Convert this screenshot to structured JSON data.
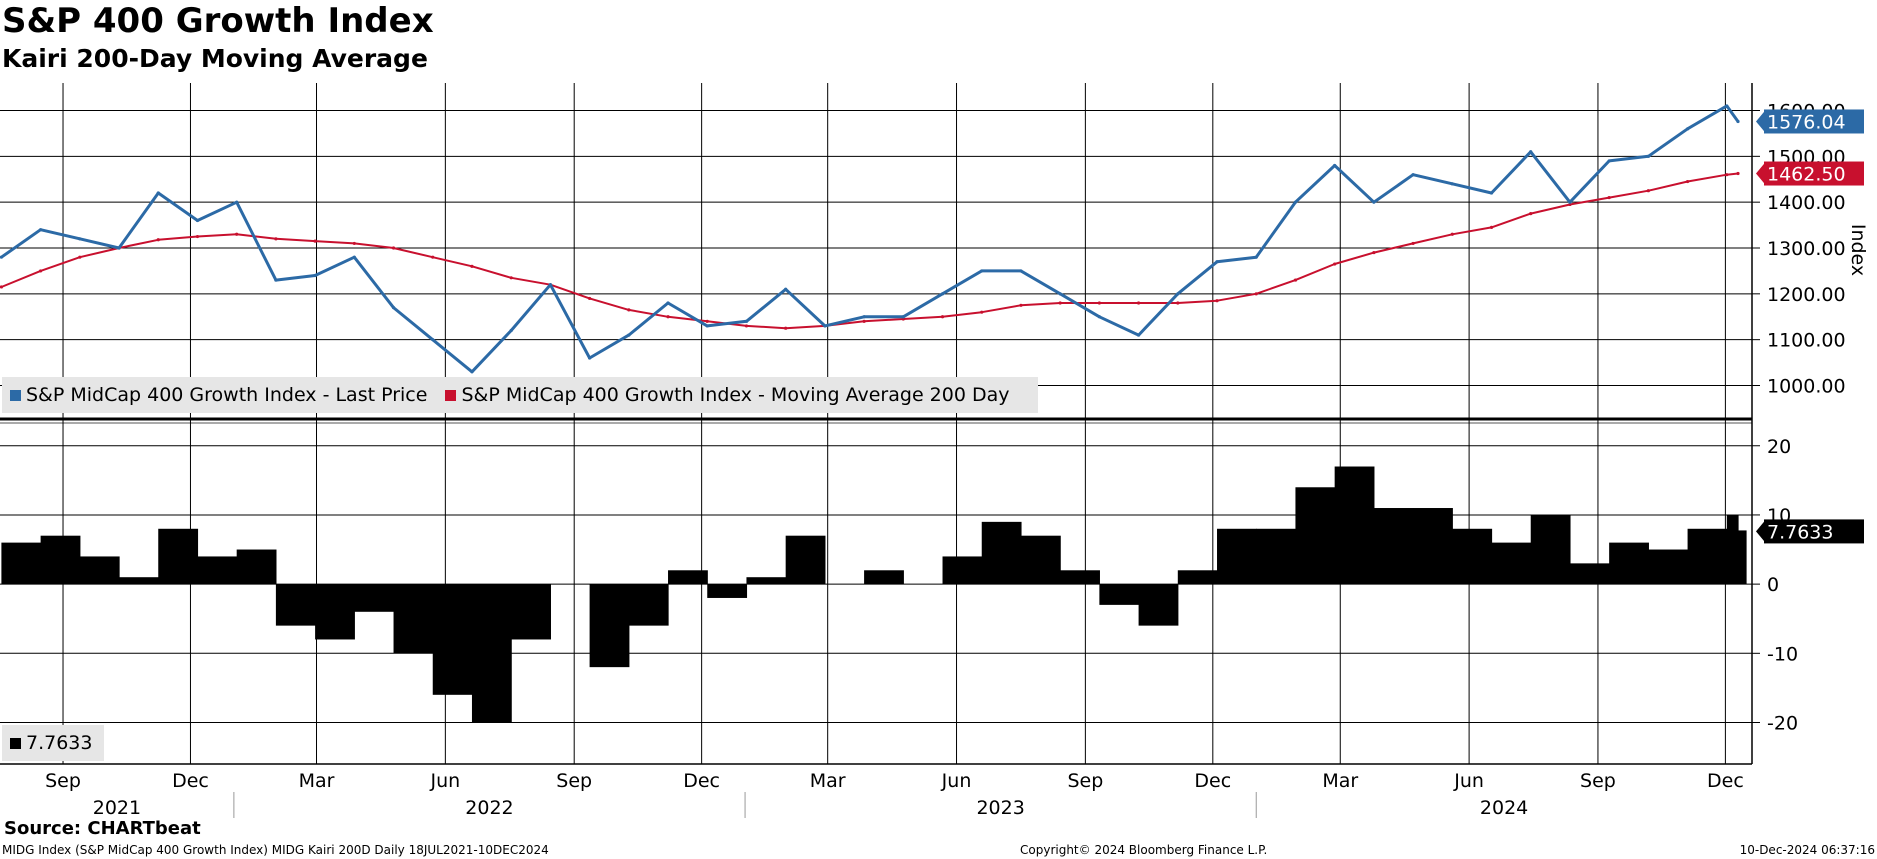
{
  "header": {
    "title": "S&P 400 Growth Index",
    "subtitle": "Kairi 200-Day Moving Average"
  },
  "colors": {
    "price": "#2c6aa6",
    "moving_average": "#c8102e",
    "kairi": "#000000",
    "legend_bg": "#e6e6e6",
    "grid": "#000000"
  },
  "legend": {
    "price_label": "S&P MidCap 400 Growth Index - Last Price",
    "ma_label": "S&P MidCap 400 Growth Index - Moving Average 200 Day",
    "kairi_label": "7.7633"
  },
  "footer": {
    "source": "Source: CHARTbeat",
    "description": "MIDG Index (S&P MidCap 400 Growth Index) MIDG Kairi 200D  Daily 18JUL2021-10DEC2024",
    "copyright": "Copyright© 2024 Bloomberg Finance L.P.",
    "timestamp": "10-Dec-2024 06:37:16"
  },
  "chart_data": [
    {
      "type": "line",
      "ylabel": "Index",
      "ylim": [
        940,
        1660
      ],
      "yticks": [
        "1600.00",
        "1500.00",
        "1400.00",
        "1300.00",
        "1200.00",
        "1100.00",
        "1000.00"
      ],
      "ytick_values": [
        1600,
        1500,
        1400,
        1300,
        1200,
        1100,
        1000
      ],
      "grid": true,
      "legend_position": "bottom-left",
      "last_values": {
        "price": "1576.04",
        "moving_average": "1462.50"
      },
      "x": [
        "2021-07-19",
        "2021-08-16",
        "2021-09-13",
        "2021-10-11",
        "2021-11-08",
        "2021-12-06",
        "2022-01-03",
        "2022-01-31",
        "2022-02-28",
        "2022-03-28",
        "2022-04-25",
        "2022-05-23",
        "2022-06-20",
        "2022-07-18",
        "2022-08-15",
        "2022-09-12",
        "2022-10-10",
        "2022-11-07",
        "2022-12-05",
        "2023-01-02",
        "2023-01-30",
        "2023-02-27",
        "2023-03-27",
        "2023-04-24",
        "2023-05-22",
        "2023-06-19",
        "2023-07-17",
        "2023-08-14",
        "2023-09-11",
        "2023-10-09",
        "2023-11-06",
        "2023-12-04",
        "2024-01-01",
        "2024-01-29",
        "2024-02-26",
        "2024-03-25",
        "2024-04-22",
        "2024-05-20",
        "2024-06-17",
        "2024-07-15",
        "2024-08-12",
        "2024-09-09",
        "2024-10-07",
        "2024-11-04",
        "2024-12-02",
        "2024-12-10"
      ],
      "series": [
        {
          "name": "S&P MidCap 400 Growth Index - Last Price",
          "values": [
            1280,
            1340,
            1320,
            1300,
            1420,
            1360,
            1400,
            1230,
            1240,
            1280,
            1170,
            1100,
            1030,
            1120,
            1220,
            1060,
            1110,
            1180,
            1130,
            1140,
            1210,
            1130,
            1150,
            1150,
            1200,
            1250,
            1250,
            1200,
            1150,
            1110,
            1200,
            1270,
            1280,
            1400,
            1480,
            1400,
            1460,
            1440,
            1420,
            1510,
            1400,
            1490,
            1500,
            1560,
            1610,
            1576.04
          ]
        },
        {
          "name": "S&P MidCap 400 Growth Index - Moving Average 200 Day",
          "values": [
            1215,
            1250,
            1280,
            1300,
            1318,
            1325,
            1330,
            1320,
            1315,
            1310,
            1300,
            1280,
            1260,
            1235,
            1220,
            1190,
            1165,
            1150,
            1140,
            1130,
            1125,
            1130,
            1140,
            1145,
            1150,
            1160,
            1175,
            1180,
            1180,
            1180,
            1180,
            1185,
            1200,
            1230,
            1265,
            1290,
            1310,
            1330,
            1345,
            1375,
            1395,
            1410,
            1425,
            1445,
            1460,
            1462.5
          ]
        }
      ]
    },
    {
      "type": "bar",
      "ylim": [
        -26,
        23
      ],
      "yticks": [
        "20",
        "10",
        "0",
        "-10",
        "-20"
      ],
      "ytick_values": [
        20,
        10,
        0,
        -10,
        -20
      ],
      "grid": true,
      "last_value": "7.7633",
      "x": [
        "2021-07-19",
        "2021-08-16",
        "2021-09-13",
        "2021-10-11",
        "2021-11-08",
        "2021-12-06",
        "2022-01-03",
        "2022-01-31",
        "2022-02-28",
        "2022-03-28",
        "2022-04-25",
        "2022-05-23",
        "2022-06-20",
        "2022-07-18",
        "2022-08-15",
        "2022-09-12",
        "2022-10-10",
        "2022-11-07",
        "2022-12-05",
        "2023-01-02",
        "2023-01-30",
        "2023-02-27",
        "2023-03-27",
        "2023-04-24",
        "2023-05-22",
        "2023-06-19",
        "2023-07-17",
        "2023-08-14",
        "2023-09-11",
        "2023-10-09",
        "2023-11-06",
        "2023-12-04",
        "2024-01-01",
        "2024-01-29",
        "2024-02-26",
        "2024-03-25",
        "2024-04-22",
        "2024-05-20",
        "2024-06-17",
        "2024-07-15",
        "2024-08-12",
        "2024-09-09",
        "2024-10-07",
        "2024-11-04",
        "2024-12-02",
        "2024-12-10"
      ],
      "values": [
        6,
        7,
        4,
        1,
        8,
        4,
        5,
        -6,
        -8,
        -4,
        -10,
        -16,
        -20,
        -8,
        0,
        -12,
        -6,
        2,
        -2,
        1,
        7,
        0,
        2,
        0,
        4,
        9,
        7,
        2,
        -3,
        -6,
        2,
        8,
        8,
        14,
        17,
        11,
        11,
        8,
        6,
        10,
        3,
        6,
        5,
        8,
        10,
        7.7633
      ]
    }
  ],
  "x_axis": {
    "months": [
      {
        "label": "Sep",
        "date": "2021-09-01"
      },
      {
        "label": "Dec",
        "date": "2021-12-01"
      },
      {
        "label": "Mar",
        "date": "2022-03-01"
      },
      {
        "label": "Jun",
        "date": "2022-06-01"
      },
      {
        "label": "Sep",
        "date": "2022-09-01"
      },
      {
        "label": "Dec",
        "date": "2022-12-01"
      },
      {
        "label": "Mar",
        "date": "2023-03-01"
      },
      {
        "label": "Jun",
        "date": "2023-06-01"
      },
      {
        "label": "Sep",
        "date": "2023-09-01"
      },
      {
        "label": "Dec",
        "date": "2023-12-01"
      },
      {
        "label": "Mar",
        "date": "2024-03-01"
      },
      {
        "label": "Jun",
        "date": "2024-06-01"
      },
      {
        "label": "Sep",
        "date": "2024-09-01"
      },
      {
        "label": "Dec",
        "date": "2024-12-01"
      }
    ],
    "years": [
      {
        "label": "2021",
        "date": "2021-07-18",
        "end": "2022-01-01"
      },
      {
        "label": "2022",
        "date": "2022-01-01",
        "end": "2023-01-01"
      },
      {
        "label": "2023",
        "date": "2023-01-01",
        "end": "2024-01-01"
      },
      {
        "label": "2024",
        "date": "2024-01-01",
        "end": "2024-12-20"
      }
    ]
  }
}
